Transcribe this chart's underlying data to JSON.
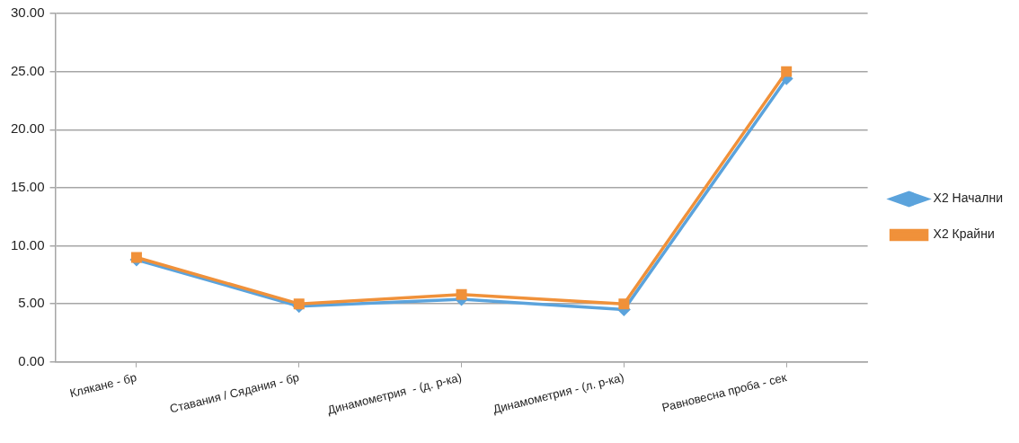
{
  "chart_data": {
    "type": "line",
    "categories": [
      "Клякане - бр",
      "Ставания / Сядания - бр",
      "Динамометрия  - (д. р-ка)",
      "Динамометрия - (л. р-ка)",
      "Равновесна проба - сек"
    ],
    "series": [
      {
        "name": "X2 Начални",
        "color": "#5ba3dc",
        "marker": "diamond",
        "values": [
          8.8,
          4.8,
          5.4,
          4.5,
          24.4
        ]
      },
      {
        "name": "X2 Крайни",
        "color": "#f0913a",
        "marker": "square",
        "values": [
          9.0,
          5.0,
          5.8,
          5.0,
          25.0
        ]
      }
    ],
    "ylim": [
      0,
      30
    ],
    "yticks": [
      {
        "value": 0,
        "label": "0.00"
      },
      {
        "value": 5,
        "label": "5.00"
      },
      {
        "value": 10,
        "label": "10.00"
      },
      {
        "value": 15,
        "label": "15.00"
      },
      {
        "value": 20,
        "label": "20.00"
      },
      {
        "value": 25,
        "label": "25.00"
      },
      {
        "value": 30,
        "label": "30.00"
      }
    ],
    "grid": "y",
    "legend": "right"
  }
}
